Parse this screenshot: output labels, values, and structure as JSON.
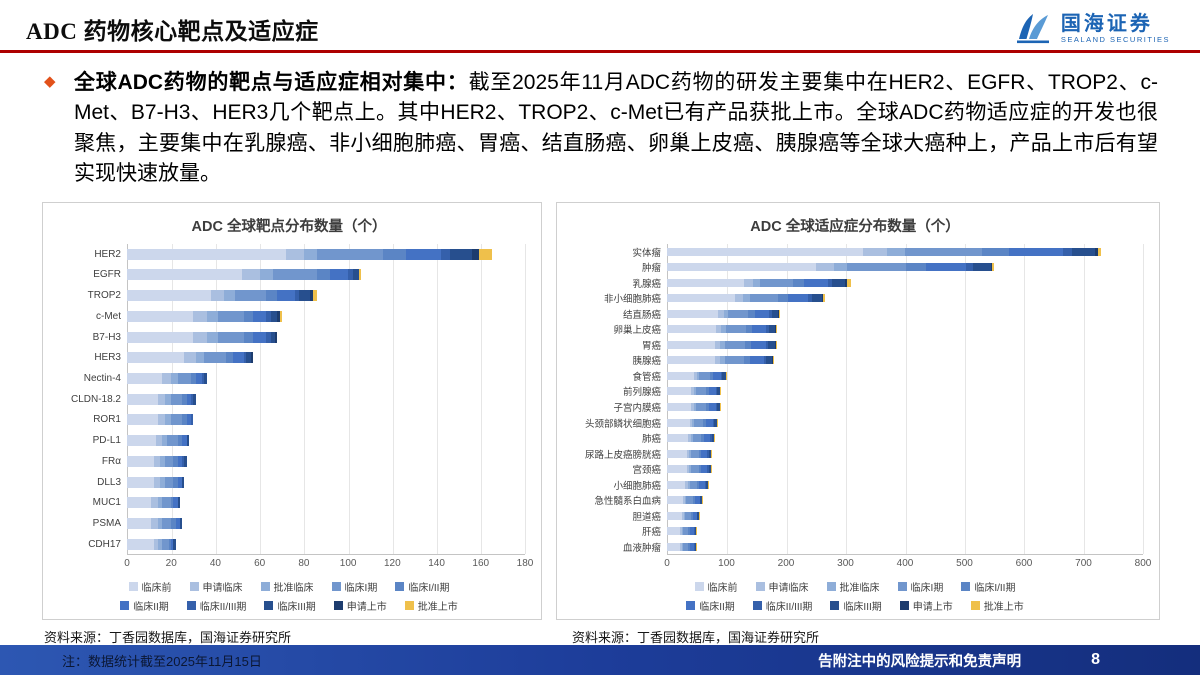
{
  "header": {
    "title": "ADC 药物核心靶点及适应症",
    "logo_cn": "国海证券",
    "logo_en": "SEALAND SECURITIES"
  },
  "intro": {
    "bullet": "◆",
    "lead": "全球ADC药物的靶点与适应症相对集中：",
    "body": "截至2025年11月ADC药物的研发主要集中在HER2、EGFR、TROP2、c-Met、B7-H3、HER3几个靶点上。其中HER2、TROP2、c-Met已有产品获批上市。全球ADC药物适应症的开发也很聚焦，主要集中在乳腺癌、非小细胞肺癌、胃癌、结直肠癌、卵巢上皮癌、胰腺癌等全球大癌种上，产品上市后有望实现快速放量。"
  },
  "chart_data": [
    {
      "type": "bar",
      "orientation": "horizontal",
      "stacked": true,
      "title": "ADC 全球靶点分布数量（个）",
      "xlabel": "",
      "ylabel": "",
      "xlim": [
        0,
        180
      ],
      "xticks": [
        0,
        20,
        40,
        60,
        80,
        100,
        120,
        140,
        160,
        180
      ],
      "grid": true,
      "legend_position": "bottom",
      "categories": [
        "HER2",
        "EGFR",
        "TROP2",
        "c-Met",
        "B7-H3",
        "HER3",
        "Nectin-4",
        "CLDN-18.2",
        "ROR1",
        "PD-L1",
        "FRα",
        "DLL3",
        "MUC1",
        "PSMA",
        "CDH17"
      ],
      "totals": [
        165,
        106,
        86,
        70,
        68,
        57,
        36,
        31,
        30,
        28,
        27,
        26,
        24,
        25,
        22
      ],
      "series": [
        {
          "name": "临床前",
          "color": "#ccd7ec",
          "values": [
            72,
            52,
            38,
            30,
            30,
            26,
            16,
            14,
            14,
            13,
            12,
            12,
            11,
            11,
            12
          ]
        },
        {
          "name": "申请临床",
          "color": "#aabfe0",
          "values": [
            8,
            8,
            6,
            6,
            6,
            5,
            4,
            3,
            3,
            3,
            3,
            3,
            3,
            3,
            2
          ]
        },
        {
          "name": "批准临床",
          "color": "#8eadd8",
          "values": [
            6,
            6,
            5,
            5,
            5,
            4,
            3,
            3,
            3,
            2,
            2,
            2,
            2,
            2,
            2
          ]
        },
        {
          "name": "临床I期",
          "color": "#7196cd",
          "values": [
            30,
            20,
            14,
            12,
            12,
            10,
            6,
            5,
            5,
            5,
            4,
            4,
            4,
            4,
            3
          ]
        },
        {
          "name": "临床I/II期",
          "color": "#5b85c5",
          "values": [
            10,
            6,
            5,
            4,
            4,
            3,
            2,
            2,
            2,
            2,
            2,
            2,
            1,
            2,
            1
          ]
        },
        {
          "name": "临床II期",
          "color": "#4472c4",
          "values": [
            16,
            8,
            8,
            6,
            6,
            5,
            3,
            2,
            2,
            2,
            2,
            2,
            2,
            2,
            1
          ]
        },
        {
          "name": "临床II/III期",
          "color": "#3560ab",
          "values": [
            4,
            2,
            2,
            2,
            2,
            1,
            1,
            1,
            1,
            0,
            1,
            0,
            0,
            0,
            0
          ]
        },
        {
          "name": "临床III期",
          "color": "#274f8e",
          "values": [
            10,
            3,
            5,
            3,
            2,
            2,
            1,
            1,
            0,
            1,
            1,
            1,
            1,
            1,
            1
          ]
        },
        {
          "name": "申请上市",
          "color": "#1d3c6e",
          "values": [
            3,
            0,
            1,
            1,
            1,
            1,
            0,
            0,
            0,
            0,
            0,
            0,
            0,
            0,
            0
          ]
        },
        {
          "name": "批准上市",
          "color": "#efc04b",
          "values": [
            6,
            1,
            2,
            1,
            0,
            0,
            0,
            0,
            0,
            0,
            0,
            0,
            0,
            0,
            0
          ]
        }
      ]
    },
    {
      "type": "bar",
      "orientation": "horizontal",
      "stacked": true,
      "title": "ADC 全球适应症分布数量（个）",
      "xlabel": "",
      "ylabel": "",
      "xlim": [
        0,
        800
      ],
      "xticks": [
        0,
        100,
        200,
        300,
        400,
        500,
        600,
        700,
        800
      ],
      "grid": true,
      "legend_position": "bottom",
      "categories": [
        "实体瘤",
        "肿瘤",
        "乳腺癌",
        "非小细胞肺癌",
        "结直肠癌",
        "卵巢上皮癌",
        "胃癌",
        "胰腺癌",
        "食管癌",
        "前列腺癌",
        "子宫内膜癌",
        "头颈部鳞状细胞癌",
        "肺癌",
        "尿路上皮癌膀胱癌",
        "宫颈癌",
        "小细胞肺癌",
        "急性髓系白血病",
        "胆道癌",
        "肝癌",
        "血液肿瘤"
      ],
      "totals": [
        730,
        550,
        310,
        265,
        190,
        185,
        185,
        180,
        100,
        90,
        90,
        85,
        80,
        75,
        75,
        70,
        60,
        55,
        50,
        50
      ],
      "series": [
        {
          "name": "临床前",
          "color": "#ccd7ec",
          "values": [
            330,
            250,
            130,
            115,
            85,
            82,
            80,
            80,
            45,
            40,
            40,
            38,
            36,
            33,
            33,
            31,
            27,
            25,
            22,
            22
          ]
        },
        {
          "name": "申请临床",
          "color": "#aabfe0",
          "values": [
            40,
            30,
            15,
            13,
            10,
            9,
            9,
            9,
            5,
            5,
            5,
            4,
            4,
            4,
            4,
            4,
            3,
            3,
            3,
            3
          ]
        },
        {
          "name": "批准临床",
          "color": "#8eadd8",
          "values": [
            30,
            22,
            12,
            11,
            8,
            8,
            8,
            8,
            4,
            4,
            4,
            4,
            3,
            3,
            3,
            3,
            2,
            2,
            2,
            2
          ]
        },
        {
          "name": "临床I期",
          "color": "#7196cd",
          "values": [
            130,
            100,
            55,
            48,
            34,
            33,
            34,
            32,
            18,
            16,
            16,
            15,
            14,
            13,
            13,
            12,
            11,
            10,
            9,
            9
          ]
        },
        {
          "name": "临床I/II期",
          "color": "#5b85c5",
          "values": [
            45,
            33,
            18,
            16,
            11,
            11,
            11,
            11,
            6,
            5,
            5,
            5,
            5,
            5,
            5,
            4,
            4,
            3,
            3,
            3
          ]
        },
        {
          "name": "临床II期",
          "color": "#4472c4",
          "values": [
            90,
            68,
            40,
            34,
            24,
            24,
            24,
            23,
            13,
            12,
            12,
            11,
            11,
            10,
            10,
            10,
            8,
            7,
            7,
            7
          ]
        },
        {
          "name": "临床II/III期",
          "color": "#3560ab",
          "values": [
            15,
            11,
            7,
            6,
            4,
            4,
            4,
            4,
            2,
            2,
            2,
            2,
            2,
            2,
            2,
            2,
            1,
            1,
            1,
            1
          ]
        },
        {
          "name": "临床III期",
          "color": "#274f8e",
          "values": [
            40,
            30,
            22,
            17,
            11,
            11,
            12,
            10,
            6,
            5,
            5,
            5,
            4,
            4,
            4,
            3,
            3,
            3,
            2,
            2
          ]
        },
        {
          "name": "申请上市",
          "color": "#1d3c6e",
          "values": [
            5,
            3,
            4,
            2,
            1,
            1,
            1,
            1,
            0,
            0,
            0,
            0,
            0,
            0,
            0,
            0,
            0,
            0,
            0,
            0
          ]
        },
        {
          "name": "批准上市",
          "color": "#efc04b",
          "values": [
            5,
            3,
            7,
            3,
            2,
            2,
            2,
            2,
            1,
            1,
            1,
            1,
            1,
            1,
            1,
            1,
            1,
            1,
            1,
            1
          ]
        }
      ]
    }
  ],
  "sources": {
    "left": "资料来源：丁香园数据库，国海证券研究所",
    "right": "资料来源：丁香园数据库，国海证券研究所"
  },
  "footer": {
    "note": "注：数据统计截至2025年11月15日",
    "disclaimer": "告附注中的风险提示和免责声明",
    "page": "8"
  },
  "colors": {
    "rule_red": "#ad0000",
    "bullet_orange": "#e2511a",
    "brand_blue": "#1c64b4",
    "footer_blue": "#1d3d9a",
    "approved_yellow": "#efc04b"
  }
}
